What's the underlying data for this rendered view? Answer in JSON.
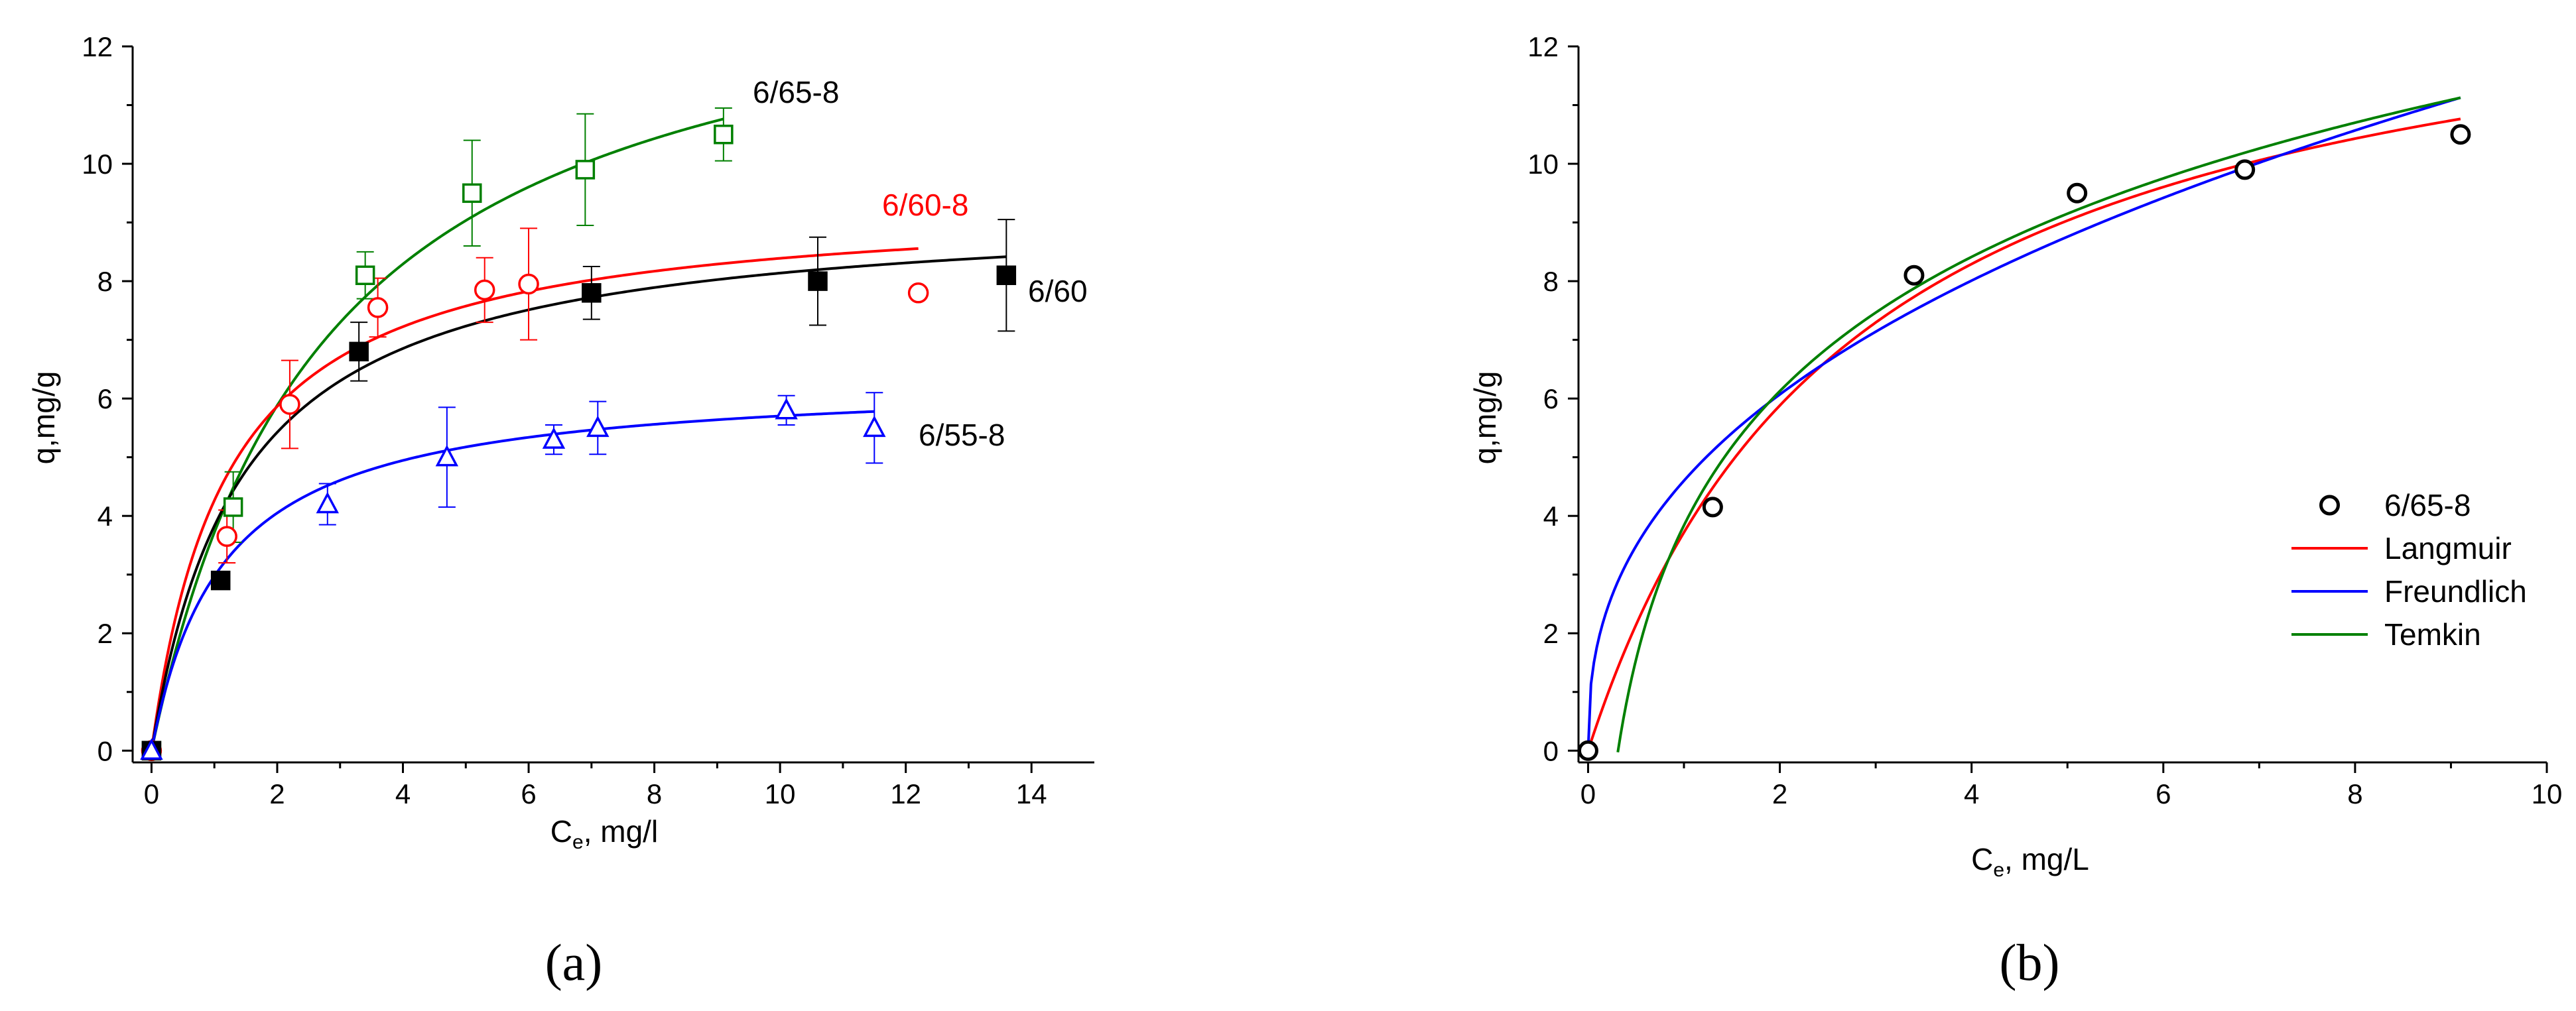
{
  "chart_data": [
    {
      "panel_label": "(a)",
      "type": "scatter",
      "xlabel_main": "C",
      "xlabel_sub": "e",
      "xlabel_rest": ", mg/l",
      "ylabel": "q,mg/g",
      "xlim": [
        -0.3,
        15
      ],
      "ylim": [
        -0.2,
        12
      ],
      "xticks": [
        0,
        2,
        4,
        6,
        8,
        10,
        12,
        14
      ],
      "yticks": [
        0,
        2,
        4,
        6,
        8,
        10,
        12
      ],
      "series": [
        {
          "name": "6/65-8",
          "color": "#008000",
          "marker": "open-square",
          "points": [
            {
              "x": 0,
              "y": 0,
              "err": 0
            },
            {
              "x": 1.3,
              "y": 4.15,
              "err": 0.6
            },
            {
              "x": 3.4,
              "y": 8.1,
              "err": 0.4
            },
            {
              "x": 5.1,
              "y": 9.5,
              "err": 0.9
            },
            {
              "x": 6.9,
              "y": 9.9,
              "err": 0.95
            },
            {
              "x": 9.1,
              "y": 10.5,
              "err": 0.45
            }
          ],
          "fit": {
            "model": "langmuir",
            "qmax": 14.05,
            "K": 0.36,
            "xmax": 9.1
          }
        },
        {
          "name": "6/60-8",
          "color": "#ff0000",
          "marker": "open-circle",
          "points": [
            {
              "x": 0,
              "y": 0,
              "err": 0
            },
            {
              "x": 1.2,
              "y": 3.65,
              "err": 0.45
            },
            {
              "x": 2.2,
              "y": 5.9,
              "err": 0.75
            },
            {
              "x": 3.6,
              "y": 7.55,
              "err": 0.5
            },
            {
              "x": 5.3,
              "y": 7.85,
              "err": 0.55
            },
            {
              "x": 6.0,
              "y": 7.95,
              "err": 0.95
            },
            {
              "x": 12.2,
              "y": 7.8,
              "err": 0
            }
          ],
          "fit": {
            "model": "langmuir",
            "qmax": 9.4,
            "K": 0.83,
            "xmax": 12.2
          }
        },
        {
          "name": "6/60",
          "color": "#000000",
          "marker": "filled-square",
          "points": [
            {
              "x": 0,
              "y": 0,
              "err": 0
            },
            {
              "x": 1.1,
              "y": 2.9,
              "err": 0
            },
            {
              "x": 3.3,
              "y": 6.8,
              "err": 0.5
            },
            {
              "x": 7.0,
              "y": 7.8,
              "err": 0.45
            },
            {
              "x": 10.6,
              "y": 8.0,
              "err": 0.75
            },
            {
              "x": 13.6,
              "y": 8.1,
              "err": 0.95
            }
          ],
          "fit": {
            "model": "langmuir",
            "qmax": 9.3,
            "K": 0.7,
            "xmax": 13.6
          }
        },
        {
          "name": "6/55-8",
          "color": "#0000ff",
          "marker": "open-triangle",
          "points": [
            {
              "x": 0,
              "y": 0,
              "err": 0
            },
            {
              "x": 2.8,
              "y": 4.2,
              "err": 0.35
            },
            {
              "x": 4.7,
              "y": 5.0,
              "err": 0.85
            },
            {
              "x": 6.4,
              "y": 5.3,
              "err": 0.25
            },
            {
              "x": 7.1,
              "y": 5.5,
              "err": 0.45
            },
            {
              "x": 10.1,
              "y": 5.8,
              "err": 0.25
            },
            {
              "x": 11.5,
              "y": 5.5,
              "err": 0.6
            }
          ],
          "fit": {
            "model": "langmuir",
            "qmax": 6.35,
            "K": 0.88,
            "xmax": 11.5
          }
        }
      ]
    },
    {
      "panel_label": "(b)",
      "type": "scatter",
      "xlabel_main": "C",
      "xlabel_sub": "e",
      "xlabel_rest": ", mg/L",
      "ylabel": "q,mg/g",
      "xlim": [
        -0.1,
        10
      ],
      "ylim": [
        -0.2,
        12
      ],
      "xticks": [
        0,
        2,
        4,
        6,
        8,
        10
      ],
      "yticks": [
        0,
        2,
        4,
        6,
        8,
        10,
        12
      ],
      "legend_position": "center-right",
      "points_series": {
        "name": "6/65-8",
        "color": "#000000",
        "marker": "open-circle",
        "points": [
          {
            "x": 0,
            "y": 0
          },
          {
            "x": 1.3,
            "y": 4.15
          },
          {
            "x": 3.4,
            "y": 8.1
          },
          {
            "x": 5.1,
            "y": 9.5
          },
          {
            "x": 6.85,
            "y": 9.9
          },
          {
            "x": 9.1,
            "y": 10.5
          }
        ]
      },
      "fits": [
        {
          "name": "Langmuir",
          "color": "#ff0000",
          "model": "langmuir",
          "qmax": 14.05,
          "K": 0.36,
          "xmin": 0,
          "xmax": 9.1
        },
        {
          "name": "Freundlich",
          "color": "#0000ff",
          "model": "freundlich",
          "Kf": 4.6,
          "n": 0.4,
          "xmin": 0,
          "xmax": 9.1
        },
        {
          "name": "Temkin",
          "color": "#008000",
          "model": "temkin",
          "B": 3.3,
          "A": 3.2,
          "xmin": 0.31,
          "xmax": 9.1
        }
      ]
    }
  ]
}
